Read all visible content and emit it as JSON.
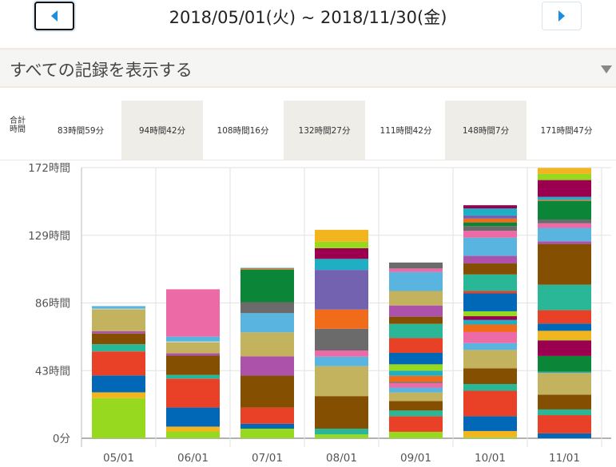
{
  "header": {
    "prev_icon": "triangle-left-icon",
    "next_icon": "triangle-right-icon",
    "date_range": "2018/05/01(火) ~ 2018/11/30(金)"
  },
  "filter": {
    "selected": "すべての記録を表示する",
    "caret_icon": "dropdown-caret-icon"
  },
  "totals": {
    "label": "合計時間",
    "values": [
      "83時間59分",
      "94時間42分",
      "108時間16分",
      "132時間27分",
      "111時間42分",
      "148時間7分",
      "171時間47分"
    ]
  },
  "chart_data": {
    "type": "bar",
    "stacked": true,
    "categories": [
      "05/01",
      "06/01",
      "07/01",
      "08/01",
      "09/01",
      "10/01",
      "11/01"
    ],
    "y_ticks": [
      "0分",
      "43時間",
      "86時間",
      "129時間",
      "172時間"
    ],
    "y_tick_values": [
      0,
      43,
      86,
      129,
      172
    ],
    "ylim": [
      0,
      172
    ],
    "grid": true,
    "palette": {
      "lime": "#97d91e",
      "yellow": "#f2b51d",
      "blue": "#0068b7",
      "red": "#e94128",
      "teal": "#2ab798",
      "brown": "#844f00",
      "purple": "#ac52ab",
      "khaki": "#c3b35e",
      "lightgray": "#c9d6d6",
      "lightblue": "#5ab4e0",
      "pink": "#ec6aa6",
      "gray": "#6b6b6b",
      "green": "#0b8638",
      "orange": "#f06c1a",
      "indigo": "#7262af",
      "cyan": "#1fafc4",
      "crimson": "#9b0050"
    },
    "stacks": [
      [
        [
          "lime",
          25.5
        ],
        [
          "yellow",
          3.7
        ],
        [
          "blue",
          10.7
        ],
        [
          "red",
          15.3
        ],
        [
          "teal",
          4.6
        ],
        [
          "brown",
          6.8
        ],
        [
          "purple",
          1.4
        ],
        [
          "khaki",
          13.9
        ],
        [
          "lightgray",
          0.5
        ],
        [
          "lightblue",
          1.6
        ]
      ],
      [
        [
          "lime",
          4.3
        ],
        [
          "yellow",
          3.1
        ],
        [
          "blue",
          12.1
        ],
        [
          "red",
          18.4
        ],
        [
          "teal",
          2.4
        ],
        [
          "brown",
          12.2
        ],
        [
          "purple",
          1.5
        ],
        [
          "khaki",
          7.0
        ],
        [
          "lightgray",
          0.5
        ],
        [
          "lightblue",
          3.1
        ],
        [
          "pink",
          30.1
        ]
      ],
      [
        [
          "lime",
          6.1
        ],
        [
          "blue",
          3.1
        ],
        [
          "red",
          10.2
        ],
        [
          "brown",
          20.4
        ],
        [
          "purple",
          12.2
        ],
        [
          "khaki",
          15.3
        ],
        [
          "lightblue",
          12.2
        ],
        [
          "gray",
          7.0
        ],
        [
          "green",
          20.6
        ],
        [
          "orange",
          0.7
        ],
        [
          "cyan",
          0.5
        ]
      ],
      [
        [
          "lime",
          2.4
        ],
        [
          "teal",
          3.7
        ],
        [
          "brown",
          20.7
        ],
        [
          "khaki",
          19.0
        ],
        [
          "lightblue",
          6.1
        ],
        [
          "pink",
          3.9
        ],
        [
          "gray",
          13.8
        ],
        [
          "orange",
          12.2
        ],
        [
          "indigo",
          25.2
        ],
        [
          "cyan",
          7.0
        ],
        [
          "crimson",
          6.8
        ],
        [
          "lime",
          4.1
        ],
        [
          "yellow",
          7.6
        ]
      ],
      [
        [
          "lime",
          4.1
        ],
        [
          "red",
          9.9
        ],
        [
          "teal",
          3.6
        ],
        [
          "brown",
          6.1
        ],
        [
          "khaki",
          5.4
        ],
        [
          "lightblue",
          3.1
        ],
        [
          "pink",
          2.9
        ],
        [
          "gray",
          0.7
        ],
        [
          "orange",
          3.9
        ],
        [
          "cyan",
          3.2
        ],
        [
          "lime",
          4.1
        ],
        [
          "blue",
          7.3
        ],
        [
          "red",
          9.4
        ],
        [
          "teal",
          9.0
        ],
        [
          "brown",
          4.6
        ],
        [
          "purple",
          7.1
        ],
        [
          "khaki",
          9.2
        ],
        [
          "lightblue",
          12.1
        ],
        [
          "pink",
          2.2
        ],
        [
          "gray",
          3.8
        ]
      ],
      [
        [
          "lime",
          0.7
        ],
        [
          "yellow",
          3.9
        ],
        [
          "blue",
          9.4
        ],
        [
          "red",
          16.2
        ],
        [
          "teal",
          4.3
        ],
        [
          "brown",
          10.0
        ],
        [
          "khaki",
          11.6
        ],
        [
          "lightblue",
          4.4
        ],
        [
          "pink",
          7.0
        ],
        [
          "orange",
          4.8
        ],
        [
          "cyan",
          2.9
        ],
        [
          "crimson",
          2.4
        ],
        [
          "lime",
          3.1
        ],
        [
          "blue",
          11.4
        ],
        [
          "red",
          1.5
        ],
        [
          "teal",
          10.5
        ],
        [
          "brown",
          7.0
        ],
        [
          "purple",
          4.8
        ],
        [
          "lightblue",
          11.6
        ],
        [
          "pink",
          4.4
        ],
        [
          "gray",
          2.9
        ],
        [
          "green",
          2.4
        ],
        [
          "orange",
          2.4
        ],
        [
          "indigo",
          2.0
        ],
        [
          "cyan",
          4.5
        ],
        [
          "crimson",
          2.0
        ]
      ],
      [
        [
          "blue",
          3.1
        ],
        [
          "red",
          11.6
        ],
        [
          "teal",
          3.6
        ],
        [
          "brown",
          9.4
        ],
        [
          "khaki",
          13.9
        ],
        [
          "cyan",
          0.7
        ],
        [
          "green",
          10.0
        ],
        [
          "crimson",
          9.9
        ],
        [
          "lime",
          0.5
        ],
        [
          "yellow",
          5.6
        ],
        [
          "blue",
          4.6
        ],
        [
          "red",
          8.5
        ],
        [
          "teal",
          16.2
        ],
        [
          "brown",
          25.9
        ],
        [
          "purple",
          1.7
        ],
        [
          "lightblue",
          8.5
        ],
        [
          "pink",
          2.9
        ],
        [
          "gray",
          2.4
        ],
        [
          "green",
          11.7
        ],
        [
          "orange",
          0.7
        ],
        [
          "cyan",
          2.0
        ],
        [
          "crimson",
          10.7
        ],
        [
          "lime",
          3.9
        ],
        [
          "yellow",
          3.8
        ]
      ]
    ]
  }
}
